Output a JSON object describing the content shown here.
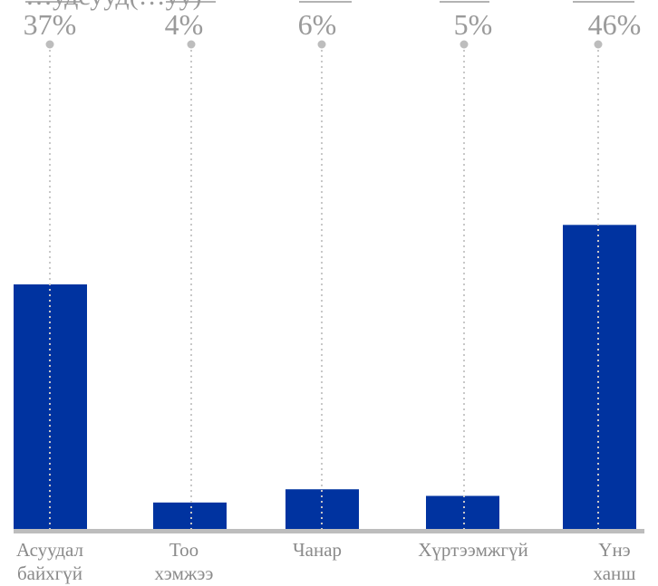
{
  "chart_data": {
    "type": "bar",
    "title": "…удсууд(…уу)",
    "categories": [
      [
        "Асуудал",
        "байхгүй"
      ],
      [
        "Тоо",
        "хэмжээ"
      ],
      [
        "Чанар"
      ],
      [
        "Хүртээмжгүй"
      ],
      [
        "Үнэ",
        "ханш"
      ]
    ],
    "values": [
      37,
      4,
      6,
      5,
      46
    ],
    "value_labels": [
      "37%",
      "4%",
      "6%",
      "5%",
      "46%"
    ],
    "unit": "%",
    "colors": {
      "bar": "#0033a0",
      "axis": "#bdbdbd",
      "leader": "#c8c8c8",
      "text": "#9a9a9a"
    }
  }
}
